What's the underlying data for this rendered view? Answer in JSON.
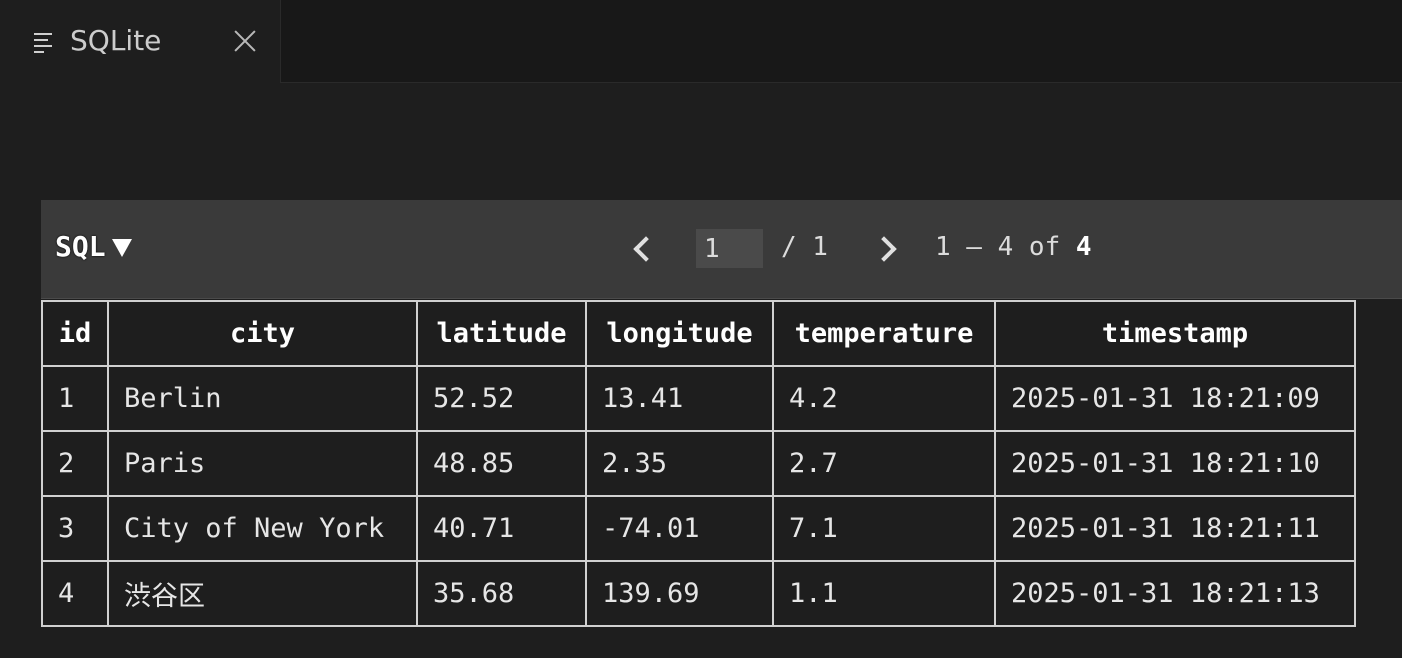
{
  "tab": {
    "title": "SQLite",
    "icon": "list-icon",
    "close_icon": "close-icon"
  },
  "toolbar": {
    "mode_label": "SQL",
    "page_current": "1",
    "page_total": "/ 1",
    "range_text": "1 – 4 of ",
    "range_total": "4"
  },
  "table": {
    "columns": [
      "id",
      "city",
      "latitude",
      "longitude",
      "temperature",
      "timestamp"
    ],
    "rows": [
      [
        "1",
        "Berlin",
        "52.52",
        "13.41",
        "4.2",
        "2025-01-31 18:21:09"
      ],
      [
        "2",
        "Paris",
        "48.85",
        "2.35",
        "2.7",
        "2025-01-31 18:21:10"
      ],
      [
        "3",
        "City of New York",
        "40.71",
        "-74.01",
        "7.1",
        "2025-01-31 18:21:11"
      ],
      [
        "4",
        "渋谷区",
        "35.68",
        "139.69",
        "1.1",
        "2025-01-31 18:21:13"
      ]
    ]
  }
}
